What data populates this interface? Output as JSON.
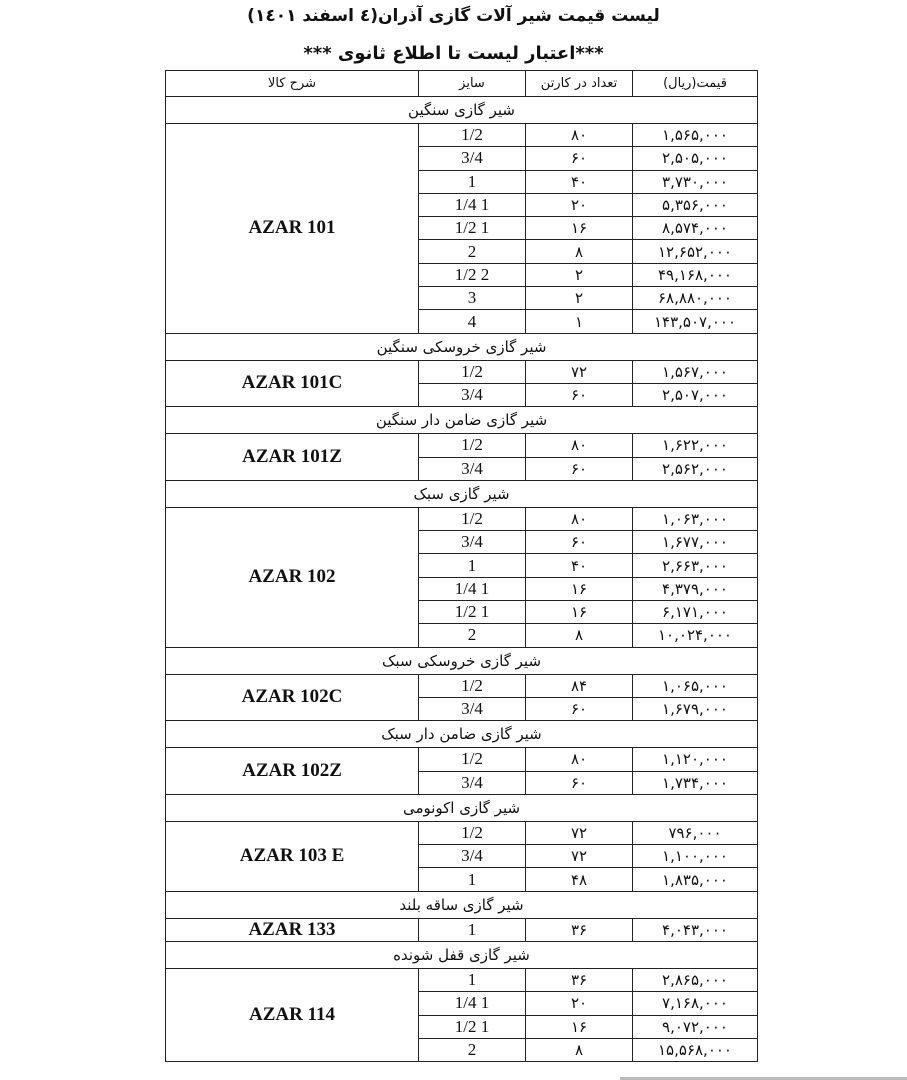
{
  "title": "لیست قیمت شیر آلات گازی آذران(٤ اسفند ١٤٠١)",
  "subtitle": "***اعتبار لیست تا اطلاع ثانوی ***",
  "headers": {
    "price": "قیمت(ریال)",
    "count": "تعداد در کارتن",
    "size": "سایز",
    "description": "شرح کالا"
  },
  "sections": [
    {
      "title": "شیر گازی سنگین",
      "model": "AZAR  101",
      "rows": [
        {
          "size": "1/2",
          "count": "۸۰",
          "price": "۱,۵۶۵,۰۰۰"
        },
        {
          "size": "3/4",
          "count": "۶۰",
          "price": "۲,۵۰۵,۰۰۰"
        },
        {
          "size": "1",
          "count": "۴۰",
          "price": "۳,۷۳۰,۰۰۰"
        },
        {
          "size": "1 1/4",
          "count": "۲۰",
          "price": "۵,۳۵۶,۰۰۰"
        },
        {
          "size": "1 1/2",
          "count": "۱۶",
          "price": "۸,۵۷۴,۰۰۰"
        },
        {
          "size": "2",
          "count": "۸",
          "price": "۱۲,۶۵۲,۰۰۰"
        },
        {
          "size": "2 1/2",
          "count": "۲",
          "price": "۴۹,۱۶۸,۰۰۰"
        },
        {
          "size": "3",
          "count": "۲",
          "price": "۶۸,۸۸۰,۰۰۰"
        },
        {
          "size": "4",
          "count": "۱",
          "price": "۱۴۳,۵۰۷,۰۰۰"
        }
      ]
    },
    {
      "title": "شیر گازی خروسکی سنگین",
      "model": "AZAR  101C",
      "rows": [
        {
          "size": "1/2",
          "count": "۷۲",
          "price": "۱,۵۶۷,۰۰۰"
        },
        {
          "size": "3/4",
          "count": "۶۰",
          "price": "۲,۵۰۷,۰۰۰"
        }
      ]
    },
    {
      "title": "شیر گازی ضامن دار سنگین",
      "model": "AZAR  101Z",
      "rows": [
        {
          "size": "1/2",
          "count": "۸۰",
          "price": "۱,۶۲۲,۰۰۰"
        },
        {
          "size": "3/4",
          "count": "۶۰",
          "price": "۲,۵۶۲,۰۰۰"
        }
      ]
    },
    {
      "title": "شیر گازی سبک",
      "model": "AZAR  102",
      "rows": [
        {
          "size": "1/2",
          "count": "۸۰",
          "price": "۱,۰۶۳,۰۰۰"
        },
        {
          "size": "3/4",
          "count": "۶۰",
          "price": "۱,۶۷۷,۰۰۰"
        },
        {
          "size": "1",
          "count": "۴۰",
          "price": "۲,۶۶۳,۰۰۰"
        },
        {
          "size": "1 1/4",
          "count": "۱۶",
          "price": "۴,۳۷۹,۰۰۰"
        },
        {
          "size": "1 1/2",
          "count": "۱۶",
          "price": "۶,۱۷۱,۰۰۰"
        },
        {
          "size": "2",
          "count": "۸",
          "price": "۱۰,۰۲۴,۰۰۰"
        }
      ]
    },
    {
      "title": "شیر گازی خروسکی سبک",
      "model": "AZAR  102C",
      "rows": [
        {
          "size": "1/2",
          "count": "۸۴",
          "price": "۱,۰۶۵,۰۰۰"
        },
        {
          "size": "3/4",
          "count": "۶۰",
          "price": "۱,۶۷۹,۰۰۰"
        }
      ]
    },
    {
      "title": "شیر گازی ضامن دار سبک",
      "model": "AZAR  102Z",
      "rows": [
        {
          "size": "1/2",
          "count": "۸۰",
          "price": "۱,۱۲۰,۰۰۰"
        },
        {
          "size": "3/4",
          "count": "۶۰",
          "price": "۱,۷۳۴,۰۰۰"
        }
      ]
    },
    {
      "title": "شیر گازی اکونومی",
      "model": "AZAR  103 E",
      "rows": [
        {
          "size": "1/2",
          "count": "۷۲",
          "price": "۷۹۶,۰۰۰"
        },
        {
          "size": "3/4",
          "count": "۷۲",
          "price": "۱,۱۰۰,۰۰۰"
        },
        {
          "size": "1",
          "count": "۴۸",
          "price": "۱,۸۳۵,۰۰۰"
        }
      ]
    },
    {
      "title": "شیر گازی ساقه بلند",
      "model": "AZAR  133",
      "rows": [
        {
          "size": "1",
          "count": "۳۶",
          "price": "۴,۰۴۳,۰۰۰"
        }
      ]
    },
    {
      "title": "شیر گازی قفل شونده",
      "model": "AZAR  114",
      "rows": [
        {
          "size": "1",
          "count": "۳۶",
          "price": "۲,۸۶۵,۰۰۰"
        },
        {
          "size": "1 1/4",
          "count": "۲۰",
          "price": "۷,۱۶۸,۰۰۰"
        },
        {
          "size": "1 1/2",
          "count": "۱۶",
          "price": "۹,۰۷۲,۰۰۰"
        },
        {
          "size": "2",
          "count": "۸",
          "price": "۱۵,۵۶۸,۰۰۰"
        }
      ]
    }
  ]
}
